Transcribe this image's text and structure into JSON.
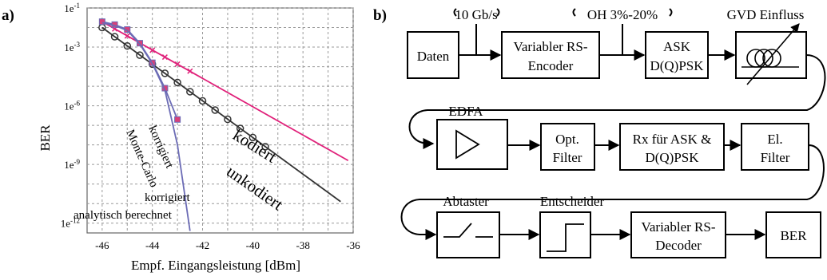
{
  "panel_a": {
    "label": "a)",
    "xlabel": "Empf. Eingangsleistung [dBm]",
    "ylabel": "BER",
    "annotations": {
      "kodiert": "kodiert",
      "unkodiert": "unkodiert",
      "korrigiert": "korrigiert",
      "monte_carlo": "Monte-Carlo",
      "korrigiert2": "korrigiert",
      "analytisch": "analytisch berechnet"
    }
  },
  "chart_data": {
    "type": "line",
    "x_ticks": [
      -46,
      -44,
      -42,
      -40,
      -38,
      -36
    ],
    "x_tick_labels": [
      "-46",
      "-44",
      "-42",
      "-40",
      "-38",
      "-36"
    ],
    "y_ticks_exp": [
      -1,
      -3,
      -6,
      -9,
      -12
    ],
    "y_tick_labels": [
      {
        "base": "1e",
        "exp": "-1"
      },
      {
        "base": "1e",
        "exp": "-3"
      },
      {
        "base": "1e",
        "exp": "-6"
      },
      {
        "base": "1e",
        "exp": "-9"
      },
      {
        "base": "1e",
        "exp": "-12"
      }
    ],
    "xlim": [
      -46.6,
      -36
    ],
    "ylim_exp": [
      -12.5,
      -1
    ],
    "grid": true,
    "series": [
      {
        "name": "kodiert",
        "color": "#e0217a",
        "marker": "x",
        "x": [
          -46,
          -36.2
        ],
        "y": [
          -1.7,
          -8.8
        ],
        "marker_x": [
          -46,
          -45.5,
          -45,
          -44.5,
          -44,
          -43.5,
          -43,
          -42.5
        ],
        "marker_y": [
          -1.7,
          -2.07,
          -2.43,
          -2.79,
          -3.16,
          -3.51,
          -3.87,
          -4.23
        ]
      },
      {
        "name": "unkodiert",
        "color": "#333333",
        "marker": "circle",
        "x": [
          -46,
          -36.5
        ],
        "y": [
          -2.0,
          -10.9
        ],
        "marker_x": [
          -46,
          -45.5,
          -45,
          -44.5,
          -44,
          -43.5,
          -43,
          -42.5,
          -42,
          -41.5,
          -41,
          -40.5,
          -40,
          -39.5
        ],
        "marker_y": [
          -2.0,
          -2.47,
          -2.94,
          -3.41,
          -3.87,
          -4.34,
          -4.81,
          -5.28,
          -5.75,
          -6.22,
          -6.69,
          -7.16,
          -7.62,
          -8.09
        ]
      },
      {
        "name": "korrigiert Monte-Carlo",
        "color": "#6b6bb5",
        "marker": "square",
        "x": [
          -46,
          -45.5,
          -45,
          -44.5,
          -44,
          -43.5,
          -43
        ],
        "y": [
          -1.7,
          -1.85,
          -2.1,
          -2.8,
          -3.8,
          -5.1,
          -6.7
        ]
      },
      {
        "name": "korrigiert analytisch berechnet",
        "color": "#6b6bb5",
        "marker": "none",
        "x": [
          -46,
          -45.5,
          -45,
          -44.5,
          -44,
          -43.5,
          -43,
          -42.5
        ],
        "y": [
          -1.75,
          -1.9,
          -2.15,
          -2.85,
          -3.85,
          -5.2,
          -8.0,
          -12.4
        ]
      }
    ]
  },
  "panel_b": {
    "label": "b)",
    "top_labels": {
      "rate": "10 Gb/s",
      "oh": "OH 3%-20%",
      "gvd": "GVD Einfluss"
    },
    "blocks": {
      "daten": "Daten",
      "rs_enc_1": "Variabler RS-",
      "rs_enc_2": "Encoder",
      "mod_1": "ASK",
      "mod_2": "D(Q)PSK",
      "edfa": "EDFA",
      "opt_1": "Opt.",
      "opt_2": "Filter",
      "rx_1": "Rx für ASK &",
      "rx_2": "D(Q)PSK",
      "el_1": "El.",
      "el_2": "Filter",
      "abtaster": "Abtaster",
      "entscheider": "Entscheider",
      "rs_dec_1": "Variabler RS-",
      "rs_dec_2": "Decoder",
      "ber": "BER"
    }
  }
}
